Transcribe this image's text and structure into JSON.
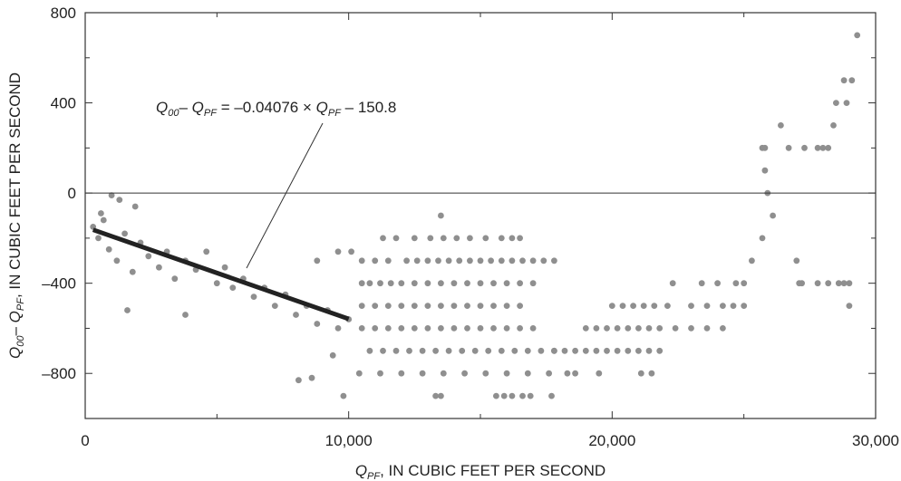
{
  "chart_data": {
    "type": "scatter",
    "title": "",
    "xlabel": {
      "q": "Q",
      "sub": "PF",
      "rest": ", IN CUBIC FEET PER SECOND"
    },
    "ylabel": {
      "q1": "Q",
      "sub1": "00",
      "dash": "– ",
      "q2": "Q",
      "sub2": "PF",
      "rest": ", IN CUBIC FEET PER SECOND"
    },
    "xlim": [
      0,
      30000
    ],
    "ylim": [
      -1000,
      800
    ],
    "x_ticks": [
      0,
      10000,
      20000,
      30000
    ],
    "x_tick_labels": [
      "0",
      "10,000",
      "20,000",
      "30,000"
    ],
    "y_ticks": [
      -800,
      -400,
      0,
      400,
      800
    ],
    "y_tick_labels": [
      "–800",
      "–400",
      "0",
      "400",
      "800"
    ],
    "y_minor_ticks": [
      -1000,
      -600,
      -200,
      200,
      600
    ],
    "x_minor_ticks": [
      5000,
      15000,
      25000
    ],
    "zero_line": true,
    "grid": false,
    "point_color": "#8f8f8f",
    "line_color": "#222222",
    "regression": {
      "slope": -0.04076,
      "intercept": -150.8,
      "x_range": [
        300,
        10000
      ]
    },
    "equation_label": {
      "q1": "Q",
      "sub1": "00",
      "dash": "– ",
      "q2": "Q",
      "sub2": "PF",
      "mid": " = –0.04076 × ",
      "q3": "Q",
      "sub3": "PF",
      "end": " – 150.8"
    },
    "series": [
      {
        "points": [
          [
            300,
            -150
          ],
          [
            500,
            -200
          ],
          [
            700,
            -120
          ],
          [
            900,
            -250
          ],
          [
            1200,
            -300
          ],
          [
            1500,
            -180
          ],
          [
            1800,
            -350
          ],
          [
            2100,
            -220
          ],
          [
            2400,
            -280
          ],
          [
            2800,
            -330
          ],
          [
            3100,
            -260
          ],
          [
            3400,
            -380
          ],
          [
            3800,
            -300
          ],
          [
            4200,
            -340
          ],
          [
            4600,
            -260
          ],
          [
            5000,
            -400
          ],
          [
            5300,
            -330
          ],
          [
            5600,
            -420
          ],
          [
            6000,
            -380
          ],
          [
            6400,
            -460
          ],
          [
            6800,
            -420
          ],
          [
            7200,
            -500
          ],
          [
            7600,
            -450
          ],
          [
            8000,
            -540
          ],
          [
            8400,
            -500
          ],
          [
            8800,
            -580
          ],
          [
            9200,
            -520
          ],
          [
            9600,
            -600
          ],
          [
            10000,
            -560
          ],
          [
            1000,
            -10
          ],
          [
            1300,
            -30
          ],
          [
            1900,
            -60
          ],
          [
            600,
            -90
          ],
          [
            3800,
            -540
          ],
          [
            1600,
            -520
          ],
          [
            8100,
            -830
          ],
          [
            8600,
            -820
          ],
          [
            9800,
            -900
          ],
          [
            9400,
            -720
          ],
          [
            10400,
            -800
          ],
          [
            10500,
            -300
          ],
          [
            9600,
            -260
          ],
          [
            10100,
            -260
          ],
          [
            8800,
            -300
          ],
          [
            10500,
            -400
          ],
          [
            10800,
            -400
          ],
          [
            11200,
            -400
          ],
          [
            11600,
            -400
          ],
          [
            12000,
            -400
          ],
          [
            12500,
            -400
          ],
          [
            13000,
            -400
          ],
          [
            13500,
            -400
          ],
          [
            14000,
            -400
          ],
          [
            14500,
            -400
          ],
          [
            15000,
            -400
          ],
          [
            15500,
            -400
          ],
          [
            16000,
            -400
          ],
          [
            16500,
            -400
          ],
          [
            17000,
            -400
          ],
          [
            10500,
            -500
          ],
          [
            11000,
            -500
          ],
          [
            11500,
            -500
          ],
          [
            12000,
            -500
          ],
          [
            12500,
            -500
          ],
          [
            13000,
            -500
          ],
          [
            13500,
            -500
          ],
          [
            14000,
            -500
          ],
          [
            14500,
            -500
          ],
          [
            15000,
            -500
          ],
          [
            15500,
            -500
          ],
          [
            16000,
            -500
          ],
          [
            16500,
            -500
          ],
          [
            10500,
            -600
          ],
          [
            11000,
            -600
          ],
          [
            11500,
            -600
          ],
          [
            12000,
            -600
          ],
          [
            12500,
            -600
          ],
          [
            13000,
            -600
          ],
          [
            13500,
            -600
          ],
          [
            14000,
            -600
          ],
          [
            14500,
            -600
          ],
          [
            15000,
            -600
          ],
          [
            15500,
            -600
          ],
          [
            16000,
            -600
          ],
          [
            16500,
            -600
          ],
          [
            17000,
            -600
          ],
          [
            10800,
            -700
          ],
          [
            11300,
            -700
          ],
          [
            11800,
            -700
          ],
          [
            12300,
            -700
          ],
          [
            12800,
            -700
          ],
          [
            13300,
            -700
          ],
          [
            13800,
            -700
          ],
          [
            14300,
            -700
          ],
          [
            14800,
            -700
          ],
          [
            15300,
            -700
          ],
          [
            15800,
            -700
          ],
          [
            16300,
            -700
          ],
          [
            16800,
            -700
          ],
          [
            17300,
            -700
          ],
          [
            17800,
            -700
          ],
          [
            11200,
            -800
          ],
          [
            12000,
            -800
          ],
          [
            12800,
            -800
          ],
          [
            13600,
            -800
          ],
          [
            14400,
            -800
          ],
          [
            15200,
            -800
          ],
          [
            16000,
            -800
          ],
          [
            16800,
            -800
          ],
          [
            17600,
            -800
          ],
          [
            13300,
            -900
          ],
          [
            13500,
            -900
          ],
          [
            15600,
            -900
          ],
          [
            15900,
            -900
          ],
          [
            16200,
            -900
          ],
          [
            16600,
            -900
          ],
          [
            16900,
            -900
          ],
          [
            17700,
            -900
          ],
          [
            11000,
            -300
          ],
          [
            11500,
            -300
          ],
          [
            12200,
            -300
          ],
          [
            12600,
            -300
          ],
          [
            13000,
            -300
          ],
          [
            13400,
            -300
          ],
          [
            13800,
            -300
          ],
          [
            14200,
            -300
          ],
          [
            14600,
            -300
          ],
          [
            15000,
            -300
          ],
          [
            15400,
            -300
          ],
          [
            15800,
            -300
          ],
          [
            16200,
            -300
          ],
          [
            16600,
            -300
          ],
          [
            17000,
            -300
          ],
          [
            17400,
            -300
          ],
          [
            17800,
            -300
          ],
          [
            11300,
            -200
          ],
          [
            11800,
            -200
          ],
          [
            12500,
            -200
          ],
          [
            13100,
            -200
          ],
          [
            13600,
            -200
          ],
          [
            14100,
            -200
          ],
          [
            14600,
            -200
          ],
          [
            15200,
            -200
          ],
          [
            15800,
            -200
          ],
          [
            16200,
            -200
          ],
          [
            16500,
            -200
          ],
          [
            13500,
            -100
          ],
          [
            17800,
            -700
          ],
          [
            18200,
            -700
          ],
          [
            18600,
            -700
          ],
          [
            19000,
            -700
          ],
          [
            19400,
            -700
          ],
          [
            19800,
            -700
          ],
          [
            20200,
            -700
          ],
          [
            20600,
            -700
          ],
          [
            21000,
            -700
          ],
          [
            21400,
            -700
          ],
          [
            21800,
            -700
          ],
          [
            18300,
            -800
          ],
          [
            18600,
            -800
          ],
          [
            19500,
            -800
          ],
          [
            21100,
            -800
          ],
          [
            21500,
            -800
          ],
          [
            19000,
            -600
          ],
          [
            19400,
            -600
          ],
          [
            19800,
            -600
          ],
          [
            20200,
            -600
          ],
          [
            20600,
            -600
          ],
          [
            21000,
            -600
          ],
          [
            21400,
            -600
          ],
          [
            21800,
            -600
          ],
          [
            22400,
            -600
          ],
          [
            23000,
            -600
          ],
          [
            23600,
            -600
          ],
          [
            24200,
            -600
          ],
          [
            20000,
            -500
          ],
          [
            20400,
            -500
          ],
          [
            20800,
            -500
          ],
          [
            21200,
            -500
          ],
          [
            21600,
            -500
          ],
          [
            22100,
            -500
          ],
          [
            23000,
            -500
          ],
          [
            23600,
            -500
          ],
          [
            24200,
            -500
          ],
          [
            24600,
            -500
          ],
          [
            25000,
            -500
          ],
          [
            22300,
            -400
          ],
          [
            23400,
            -400
          ],
          [
            24000,
            -400
          ],
          [
            24700,
            -400
          ],
          [
            25000,
            -400
          ],
          [
            25300,
            -300
          ],
          [
            25700,
            -200
          ],
          [
            25800,
            100
          ],
          [
            25900,
            0
          ],
          [
            26100,
            -100
          ],
          [
            25700,
            200
          ],
          [
            25800,
            200
          ],
          [
            26400,
            300
          ],
          [
            26700,
            200
          ],
          [
            27000,
            -300
          ],
          [
            27100,
            -400
          ],
          [
            27200,
            -400
          ],
          [
            27300,
            200
          ],
          [
            27800,
            200
          ],
          [
            28000,
            200
          ],
          [
            28200,
            200
          ],
          [
            28400,
            300
          ],
          [
            28500,
            400
          ],
          [
            28800,
            500
          ],
          [
            28900,
            400
          ],
          [
            29100,
            500
          ],
          [
            29000,
            -500
          ],
          [
            29000,
            -400
          ],
          [
            28800,
            -400
          ],
          [
            28600,
            -400
          ],
          [
            28200,
            -400
          ],
          [
            27800,
            -400
          ],
          [
            29300,
            700
          ]
        ]
      }
    ]
  }
}
